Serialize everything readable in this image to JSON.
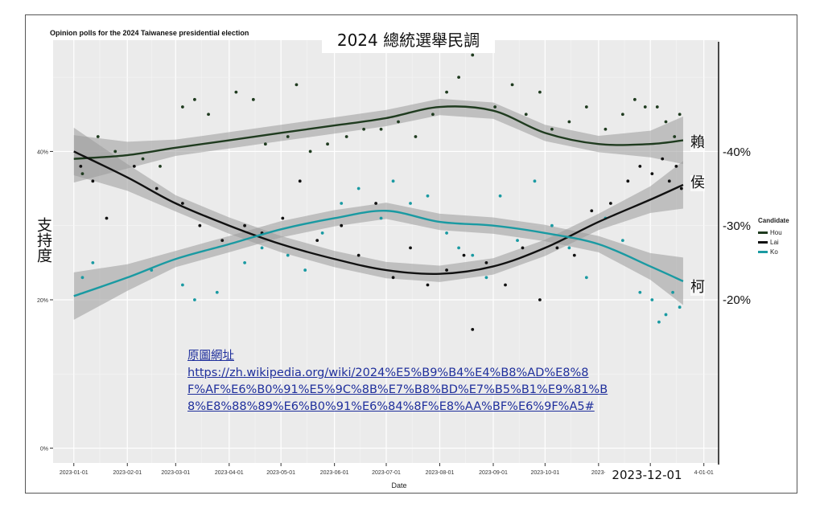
{
  "title_overlay": "2024 總統選舉民調",
  "ylabel_overlay": "支持度",
  "right_annotations": {
    "lai": "賴",
    "hou": "侯",
    "ko": "柯",
    "pct40": "-40%",
    "pct30": "-30%",
    "pct20": "-20%"
  },
  "date_overlay": "2023-12-01",
  "source_note": {
    "heading": "原圖網址",
    "url_lines": [
      "https://zh.wikipedia.org/wiki/2024%E5%B9%B4%E4%B8%AD%E8%8",
      "F%AF%E6%B0%91%E5%9C%8B%E7%B8%BD%E7%B5%B1%E9%81%B",
      "8%E8%88%89%E6%B0%91%E6%84%8F%E8%AA%BF%E6%9F%A5#"
    ]
  },
  "chart_data": {
    "type": "scatter",
    "title": "Opinion polls for the 2024 Taiwanese presidential election",
    "xlabel": "Date",
    "ylabel": "",
    "x_ticks": [
      "2023-01-01",
      "2023-02-01",
      "2023-03-01",
      "2023-04-01",
      "2023-05-01",
      "2023-06-01",
      "2023-07-01",
      "2023-08-01",
      "2023-09-01",
      "2023-10-01",
      "2023-11-01",
      "2023-12-01",
      "2024-01-01"
    ],
    "x_tick_labels": [
      "2023-01-01",
      "2023-02-01",
      "2023-03-01",
      "2023-04-01",
      "2023-05-01",
      "2023-06-01",
      "2023-07-01",
      "2023-08-01",
      "2023-09-01",
      "2023-10-01",
      "2023-",
      "",
      "4-01-01"
    ],
    "y_ticks": [
      0,
      20,
      40
    ],
    "y_tick_labels": [
      "0%",
      "20%",
      "40%"
    ],
    "ylim": [
      -2,
      55
    ],
    "xlim": [
      "2022-12-20",
      "2024-01-10"
    ],
    "grid": true,
    "legend": {
      "title": "Candidate",
      "placement": "right"
    },
    "series": [
      {
        "name": "Hou",
        "color": "#1f3b1f",
        "smooth_x": [
          "2023-01-01",
          "2023-02-01",
          "2023-03-01",
          "2023-04-01",
          "2023-05-01",
          "2023-06-01",
          "2023-07-01",
          "2023-08-01",
          "2023-09-01",
          "2023-10-01",
          "2023-11-01",
          "2023-12-01",
          "2023-12-20"
        ],
        "smooth_y": [
          39,
          39.5,
          40.5,
          41.5,
          42.5,
          43.5,
          44.5,
          46,
          45.5,
          42.5,
          41,
          41,
          41.5
        ],
        "points": [
          [
            "2023-01-06",
            37
          ],
          [
            "2023-01-15",
            42
          ],
          [
            "2023-01-25",
            40
          ],
          [
            "2023-02-10",
            39
          ],
          [
            "2023-02-20",
            38
          ],
          [
            "2023-03-05",
            46
          ],
          [
            "2023-03-12",
            47
          ],
          [
            "2023-03-20",
            45
          ],
          [
            "2023-04-05",
            48
          ],
          [
            "2023-04-15",
            47
          ],
          [
            "2023-04-22",
            41
          ],
          [
            "2023-05-05",
            42
          ],
          [
            "2023-05-10",
            49
          ],
          [
            "2023-05-18",
            40
          ],
          [
            "2023-05-28",
            41
          ],
          [
            "2023-06-08",
            42
          ],
          [
            "2023-06-18",
            43
          ],
          [
            "2023-06-28",
            43
          ],
          [
            "2023-07-08",
            44
          ],
          [
            "2023-07-18",
            42
          ],
          [
            "2023-07-28",
            45
          ],
          [
            "2023-08-05",
            48
          ],
          [
            "2023-08-12",
            50
          ],
          [
            "2023-08-20",
            53
          ],
          [
            "2023-08-25",
            54
          ],
          [
            "2023-09-02",
            46
          ],
          [
            "2023-09-12",
            49
          ],
          [
            "2023-09-20",
            45
          ],
          [
            "2023-09-28",
            48
          ],
          [
            "2023-10-05",
            43
          ],
          [
            "2023-10-15",
            44
          ],
          [
            "2023-10-25",
            46
          ],
          [
            "2023-11-05",
            43
          ],
          [
            "2023-11-15",
            45
          ],
          [
            "2023-11-22",
            47
          ],
          [
            "2023-11-28",
            46
          ],
          [
            "2023-12-05",
            46
          ],
          [
            "2023-12-10",
            44
          ],
          [
            "2023-12-15",
            42
          ],
          [
            "2023-12-18",
            45
          ]
        ]
      },
      {
        "name": "Lai",
        "color": "#111111",
        "smooth_x": [
          "2023-01-01",
          "2023-02-01",
          "2023-03-01",
          "2023-04-01",
          "2023-05-01",
          "2023-06-01",
          "2023-07-01",
          "2023-08-01",
          "2023-09-01",
          "2023-10-01",
          "2023-11-01",
          "2023-12-01",
          "2023-12-20"
        ],
        "smooth_y": [
          40,
          36.5,
          33,
          30,
          27.5,
          25.5,
          24,
          23.5,
          24.5,
          27,
          30.5,
          33.5,
          35.5
        ],
        "points": [
          [
            "2023-01-05",
            38
          ],
          [
            "2023-01-12",
            36
          ],
          [
            "2023-01-20",
            31
          ],
          [
            "2023-02-05",
            38
          ],
          [
            "2023-02-18",
            35
          ],
          [
            "2023-03-05",
            33
          ],
          [
            "2023-03-15",
            30
          ],
          [
            "2023-03-28",
            28
          ],
          [
            "2023-04-10",
            30
          ],
          [
            "2023-04-20",
            29
          ],
          [
            "2023-05-02",
            31
          ],
          [
            "2023-05-12",
            36
          ],
          [
            "2023-05-22",
            28
          ],
          [
            "2023-06-05",
            30
          ],
          [
            "2023-06-15",
            26
          ],
          [
            "2023-06-25",
            33
          ],
          [
            "2023-07-05",
            23
          ],
          [
            "2023-07-15",
            27
          ],
          [
            "2023-07-25",
            22
          ],
          [
            "2023-08-05",
            24
          ],
          [
            "2023-08-15",
            26
          ],
          [
            "2023-08-20",
            16
          ],
          [
            "2023-08-28",
            25
          ],
          [
            "2023-09-08",
            22
          ],
          [
            "2023-09-18",
            27
          ],
          [
            "2023-09-28",
            20
          ],
          [
            "2023-10-08",
            27
          ],
          [
            "2023-10-18",
            26
          ],
          [
            "2023-10-28",
            32
          ],
          [
            "2023-11-08",
            33
          ],
          [
            "2023-11-18",
            36
          ],
          [
            "2023-11-25",
            38
          ],
          [
            "2023-12-02",
            37
          ],
          [
            "2023-12-08",
            39
          ],
          [
            "2023-12-12",
            36
          ],
          [
            "2023-12-16",
            38
          ],
          [
            "2023-12-19",
            35
          ]
        ]
      },
      {
        "name": "Ko",
        "color": "#1a9aa2",
        "smooth_x": [
          "2023-01-01",
          "2023-02-01",
          "2023-03-01",
          "2023-04-01",
          "2023-05-01",
          "2023-06-01",
          "2023-07-01",
          "2023-08-01",
          "2023-09-01",
          "2023-10-01",
          "2023-11-01",
          "2023-12-01",
          "2023-12-20"
        ],
        "smooth_y": [
          20.5,
          23,
          25.5,
          27.5,
          29.5,
          31,
          32,
          30.5,
          30,
          29,
          27.5,
          24.5,
          22.5
        ],
        "points": [
          [
            "2023-01-06",
            23
          ],
          [
            "2023-01-12",
            25
          ],
          [
            "2023-02-15",
            24
          ],
          [
            "2023-03-05",
            22
          ],
          [
            "2023-03-12",
            20
          ],
          [
            "2023-03-25",
            21
          ],
          [
            "2023-04-10",
            25
          ],
          [
            "2023-04-20",
            27
          ],
          [
            "2023-05-05",
            26
          ],
          [
            "2023-05-15",
            24
          ],
          [
            "2023-05-25",
            29
          ],
          [
            "2023-06-05",
            33
          ],
          [
            "2023-06-15",
            35
          ],
          [
            "2023-06-28",
            31
          ],
          [
            "2023-07-05",
            36
          ],
          [
            "2023-07-15",
            33
          ],
          [
            "2023-07-25",
            34
          ],
          [
            "2023-08-05",
            29
          ],
          [
            "2023-08-12",
            27
          ],
          [
            "2023-08-20",
            26
          ],
          [
            "2023-08-28",
            23
          ],
          [
            "2023-09-05",
            34
          ],
          [
            "2023-09-15",
            28
          ],
          [
            "2023-09-25",
            36
          ],
          [
            "2023-10-05",
            30
          ],
          [
            "2023-10-15",
            27
          ],
          [
            "2023-10-25",
            23
          ],
          [
            "2023-11-05",
            31
          ],
          [
            "2023-11-15",
            28
          ],
          [
            "2023-11-25",
            21
          ],
          [
            "2023-12-02",
            20
          ],
          [
            "2023-12-06",
            17
          ],
          [
            "2023-12-10",
            18
          ],
          [
            "2023-12-14",
            21
          ],
          [
            "2023-12-18",
            19
          ]
        ]
      }
    ]
  }
}
